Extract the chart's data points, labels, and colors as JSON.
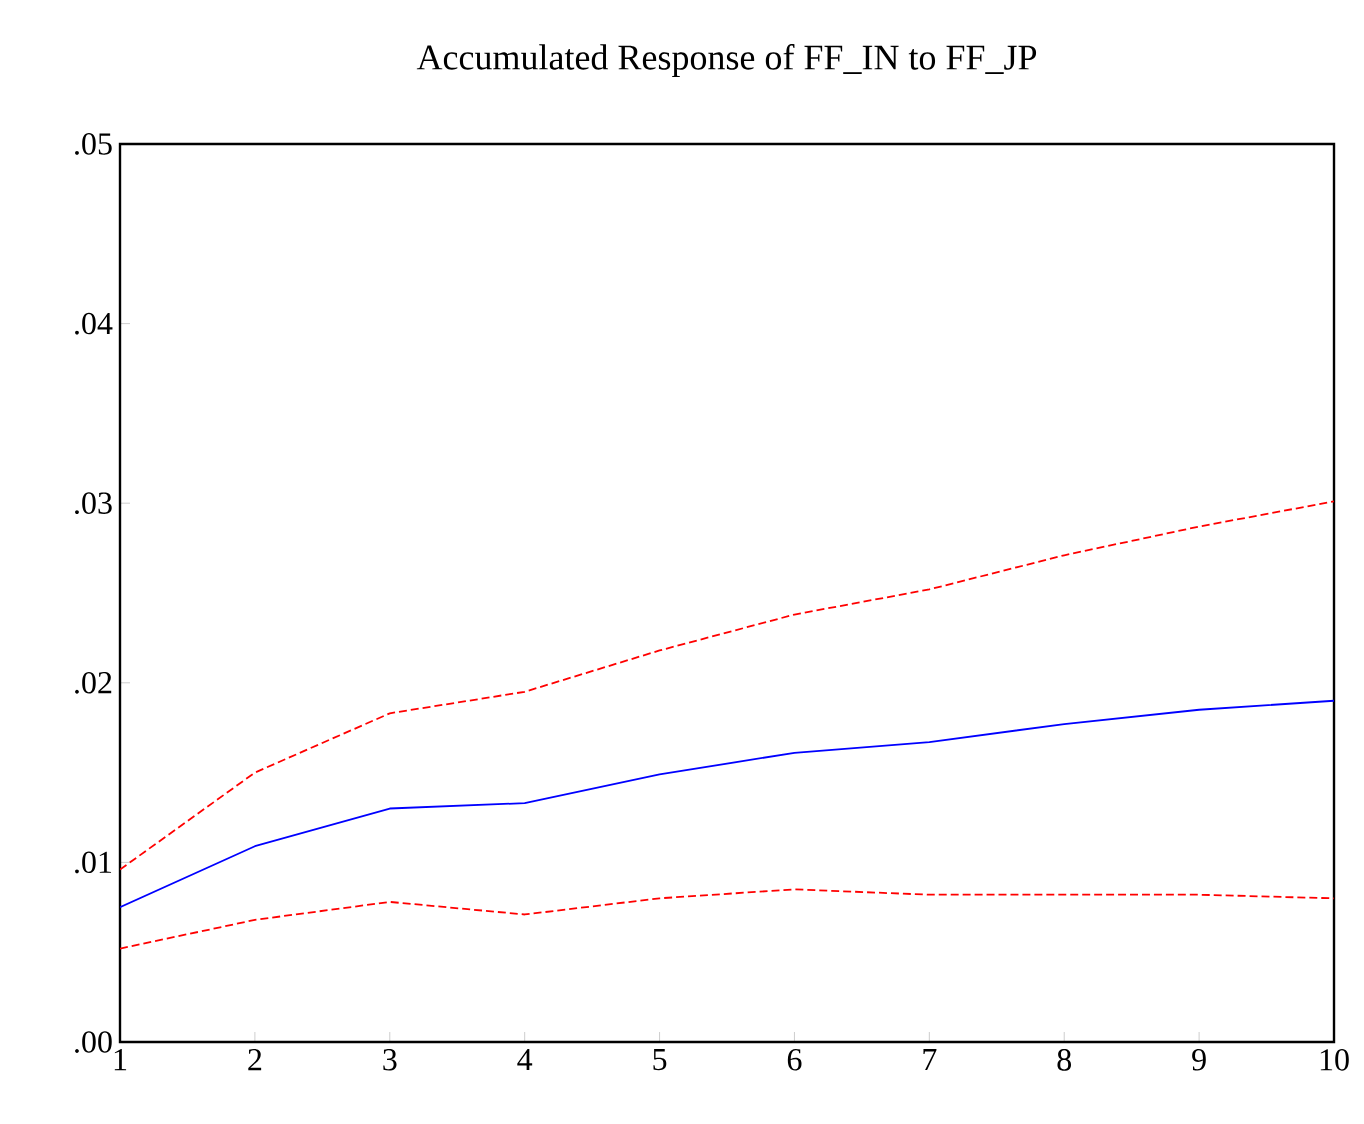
{
  "chart_data": {
    "type": "line",
    "title": "Accumulated Response of FF_IN to FF_JP",
    "x": [
      1,
      2,
      3,
      4,
      5,
      6,
      7,
      8,
      9,
      10
    ],
    "series": [
      {
        "color": "#0000ff",
        "line_style": "solid",
        "values": [
          0.0075,
          0.0109,
          0.013,
          0.0133,
          0.0149,
          0.0161,
          0.0167,
          0.0177,
          0.0185,
          0.019
        ]
      },
      {
        "color": "#ff0000",
        "line_style": "dashed",
        "values": [
          0.0096,
          0.015,
          0.0183,
          0.0195,
          0.0218,
          0.0238,
          0.0252,
          0.0271,
          0.0287,
          0.0301
        ]
      },
      {
        "color": "#ff0000",
        "line_style": "dashed",
        "values": [
          0.0052,
          0.0068,
          0.0078,
          0.0071,
          0.008,
          0.0085,
          0.0082,
          0.0082,
          0.0082,
          0.008
        ]
      }
    ],
    "xlim": [
      1,
      10
    ],
    "xticks": [
      1,
      2,
      3,
      4,
      5,
      6,
      7,
      8,
      9,
      10
    ],
    "ylim": [
      0,
      0.05
    ],
    "yticks": [
      {
        "value": 0,
        "label": ".00"
      },
      {
        "value": 0.01,
        "label": ".01"
      },
      {
        "value": 0.02,
        "label": ".02"
      },
      {
        "value": 0.03,
        "label": ".03"
      },
      {
        "value": 0.04,
        "label": ".04"
      },
      {
        "value": 0.05,
        "label": ".05"
      }
    ],
    "grid": false,
    "marker": "none"
  }
}
